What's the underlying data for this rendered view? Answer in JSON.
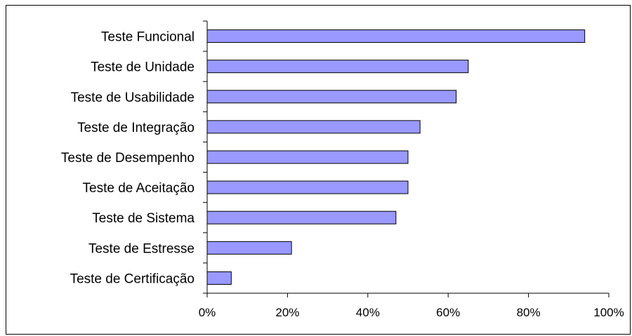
{
  "chart_data": {
    "type": "bar",
    "orientation": "horizontal",
    "categories": [
      "Teste Funcional",
      "Teste de Unidade",
      "Teste de Usabilidade",
      "Teste de Integração",
      "Teste de Desempenho",
      "Teste de Aceitação",
      "Teste de Sistema",
      "Teste de Estresse",
      "Teste de Certificação"
    ],
    "values": [
      94,
      65,
      62,
      53,
      50,
      50,
      47,
      21,
      6
    ],
    "x_unit": "%",
    "xlim": [
      0,
      100
    ],
    "x_ticks": [
      0,
      20,
      40,
      60,
      80,
      100
    ],
    "x_tick_labels": [
      "0%",
      "20%",
      "40%",
      "60%",
      "80%",
      "100%"
    ],
    "title": "",
    "xlabel": "",
    "ylabel": "",
    "grid": false,
    "legend": "none",
    "colors": {
      "bar_fill": "#9999ff",
      "bar_stroke": "#000000",
      "axis": "#000000",
      "frame": "#000000",
      "background": "#ffffff"
    }
  }
}
